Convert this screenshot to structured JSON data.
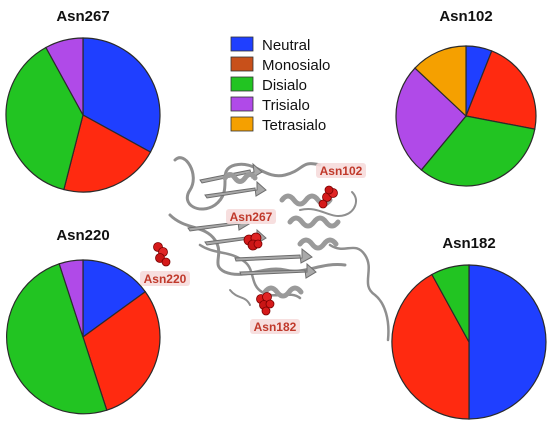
{
  "legend": {
    "items": [
      {
        "label": "Neutral",
        "color": "#1f3fff"
      },
      {
        "label": "Monosialo",
        "color": "#c8501a"
      },
      {
        "label": "Disialo",
        "color": "#22c422"
      },
      {
        "label": "Trisialo",
        "color": "#b04ae8"
      },
      {
        "label": "Tetrasialo",
        "color": "#f5a000"
      }
    ]
  },
  "chart_data": [
    {
      "type": "pie",
      "title": "Asn267",
      "slices": [
        {
          "category": "Neutral",
          "value": 33,
          "color": "#1f3fff"
        },
        {
          "category": "Monosialo",
          "value": 21,
          "color": "#ff2a10"
        },
        {
          "category": "Disialo",
          "value": 38,
          "color": "#22c422"
        },
        {
          "category": "Trisialo",
          "value": 8,
          "color": "#b04ae8"
        }
      ]
    },
    {
      "type": "pie",
      "title": "Asn102",
      "slices": [
        {
          "category": "Neutral",
          "value": 6,
          "color": "#1f3fff"
        },
        {
          "category": "Monosialo",
          "value": 22,
          "color": "#ff2a10"
        },
        {
          "category": "Disialo",
          "value": 33,
          "color": "#22c422"
        },
        {
          "category": "Trisialo",
          "value": 26,
          "color": "#b04ae8"
        },
        {
          "category": "Tetrasialo",
          "value": 13,
          "color": "#f5a000"
        }
      ]
    },
    {
      "type": "pie",
      "title": "Asn220",
      "slices": [
        {
          "category": "Neutral",
          "value": 15,
          "color": "#1f3fff"
        },
        {
          "category": "Monosialo",
          "value": 30,
          "color": "#ff2a10"
        },
        {
          "category": "Disialo",
          "value": 50,
          "color": "#22c422"
        },
        {
          "category": "Trisialo",
          "value": 5,
          "color": "#b04ae8"
        }
      ]
    },
    {
      "type": "pie",
      "title": "Asn182",
      "slices": [
        {
          "category": "Neutral",
          "value": 50,
          "color": "#1f3fff"
        },
        {
          "category": "Monosialo",
          "value": 42,
          "color": "#ff2a10"
        },
        {
          "category": "Disialo",
          "value": 8,
          "color": "#22c422"
        }
      ]
    }
  ],
  "structure": {
    "site_labels": [
      "Asn102",
      "Asn267",
      "Asn220",
      "Asn182"
    ]
  }
}
